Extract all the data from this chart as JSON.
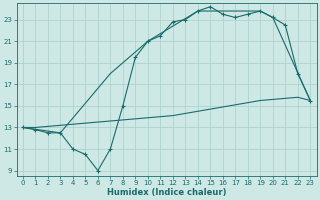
{
  "xlabel": "Humidex (Indice chaleur)",
  "xlim": [
    -0.5,
    23.5
  ],
  "ylim": [
    8.5,
    24.5
  ],
  "xticks": [
    0,
    1,
    2,
    3,
    4,
    5,
    6,
    7,
    8,
    9,
    10,
    11,
    12,
    13,
    14,
    15,
    16,
    17,
    18,
    19,
    20,
    21,
    22,
    23
  ],
  "yticks": [
    9,
    11,
    13,
    15,
    17,
    19,
    21,
    23
  ],
  "bg_color": "#cde8e5",
  "grid_color": "#aacfcc",
  "line_color": "#1a6b6b",
  "line1_x": [
    0,
    1,
    2,
    3,
    4,
    5,
    6,
    7,
    8,
    9,
    10,
    11,
    12,
    13,
    14,
    15,
    16,
    17,
    18,
    19,
    20,
    21,
    22,
    23
  ],
  "line1_y": [
    13,
    12.8,
    12.5,
    12.5,
    11.0,
    10.5,
    9.0,
    11.0,
    15.0,
    19.5,
    21.0,
    21.5,
    22.8,
    23.0,
    23.8,
    24.2,
    23.5,
    23.2,
    23.5,
    23.8,
    23.2,
    22.5,
    18.0,
    15.5
  ],
  "line2_x": [
    0,
    3,
    7,
    10,
    14,
    19,
    20,
    23
  ],
  "line2_y": [
    13,
    12.5,
    18.0,
    21.0,
    23.8,
    23.8,
    23.2,
    15.5
  ],
  "line3_x": [
    0,
    1,
    2,
    3,
    4,
    5,
    6,
    7,
    8,
    9,
    10,
    11,
    12,
    13,
    14,
    15,
    16,
    17,
    18,
    19,
    20,
    21,
    22,
    23
  ],
  "line3_y": [
    13,
    13.0,
    13.1,
    13.2,
    13.3,
    13.4,
    13.5,
    13.6,
    13.7,
    13.8,
    13.9,
    14.0,
    14.1,
    14.3,
    14.5,
    14.7,
    14.9,
    15.1,
    15.3,
    15.5,
    15.6,
    15.7,
    15.8,
    15.5
  ],
  "tick_fontsize": 5.0,
  "xlabel_fontsize": 6.0
}
